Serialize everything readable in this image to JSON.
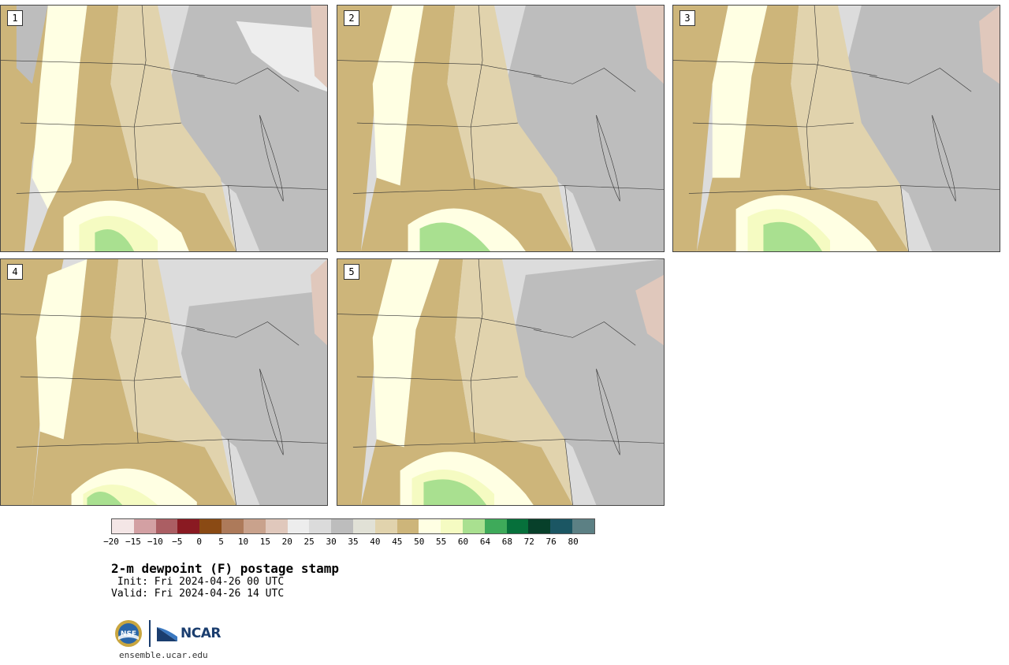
{
  "panels": [
    {
      "label": "1"
    },
    {
      "label": "2"
    },
    {
      "label": "3"
    },
    {
      "label": "4"
    },
    {
      "label": "5"
    }
  ],
  "colorbar": {
    "colors": [
      "#f4e6e6",
      "#d3a0a3",
      "#ab5e63",
      "#8a1a22",
      "#8a4a14",
      "#ad7a5a",
      "#c9a28c",
      "#e0c8bc",
      "#ededed",
      "#dbdbdb",
      "#bdbdbd",
      "#e1e1d6",
      "#e1d3ad",
      "#cdb57a",
      "#ffffe3",
      "#f5fbc2",
      "#a9e090",
      "#3eaa5a",
      "#06703b",
      "#07402a",
      "#1b5663",
      "#5c8084"
    ],
    "ticks": [
      "−20",
      "−15",
      "−10",
      "−5",
      "0",
      "5",
      "10",
      "15",
      "20",
      "25",
      "30",
      "35",
      "40",
      "45",
      "50",
      "55",
      "60",
      "64",
      "68",
      "72",
      "76",
      "80"
    ]
  },
  "title": "2-m dewpoint (F) postage stamp",
  "init": " Init: Fri 2024-04-26 00 UTC",
  "valid": "Valid: Fri 2024-04-26 14 UTC",
  "logo": {
    "nsf": "NSF",
    "ncar": "NCAR"
  },
  "website": "ensemble.ucar.edu"
}
